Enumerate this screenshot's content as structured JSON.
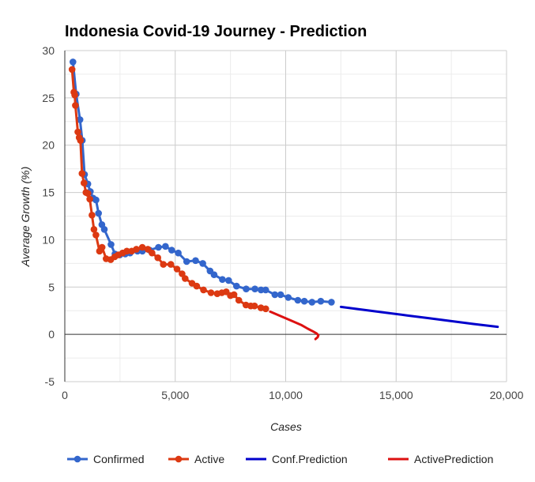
{
  "chart_data": {
    "type": "line",
    "title": "Indonesia Covid-19 Journey - Prediction",
    "xlabel": "Cases",
    "ylabel": "Average Growth (%)",
    "xlim": [
      0,
      20000
    ],
    "ylim": [
      -5,
      30
    ],
    "x_ticks": [
      0,
      5000,
      10000,
      15000,
      20000
    ],
    "x_tick_labels": [
      "0",
      "5,000",
      "10,000",
      "15,000",
      "20,000"
    ],
    "y_ticks": [
      -5,
      0,
      5,
      10,
      15,
      20,
      25,
      30
    ],
    "y_tick_labels": [
      "-5",
      "0",
      "5",
      "10",
      "15",
      "20",
      "25",
      "30"
    ],
    "grid": true,
    "legend_position": "bottom",
    "series": [
      {
        "name": "Confirmed",
        "color": "#3366cc",
        "markers": true,
        "points": [
          [
            369,
            28.8
          ],
          [
            514,
            25.4
          ],
          [
            686,
            22.7
          ],
          [
            790,
            20.5
          ],
          [
            893,
            16.9
          ],
          [
            1046,
            15.9
          ],
          [
            1155,
            15.1
          ],
          [
            1285,
            14.4
          ],
          [
            1414,
            14.2
          ],
          [
            1528,
            12.8
          ],
          [
            1677,
            11.6
          ],
          [
            1790,
            11.1
          ],
          [
            2092,
            9.5
          ],
          [
            2273,
            8.5
          ],
          [
            2491,
            8.4
          ],
          [
            2738,
            8.5
          ],
          [
            2956,
            8.6
          ],
          [
            3293,
            8.8
          ],
          [
            3512,
            8.8
          ],
          [
            3842,
            8.9
          ],
          [
            4241,
            9.2
          ],
          [
            4557,
            9.3
          ],
          [
            4839,
            8.9
          ],
          [
            5136,
            8.6
          ],
          [
            5516,
            7.7
          ],
          [
            5923,
            7.8
          ],
          [
            6248,
            7.5
          ],
          [
            6575,
            6.7
          ],
          [
            6760,
            6.3
          ],
          [
            7135,
            5.8
          ],
          [
            7418,
            5.7
          ],
          [
            7775,
            5.1
          ],
          [
            8211,
            4.8
          ],
          [
            8607,
            4.8
          ],
          [
            8882,
            4.7
          ],
          [
            9096,
            4.7
          ],
          [
            9511,
            4.2
          ],
          [
            9771,
            4.2
          ],
          [
            10118,
            3.9
          ],
          [
            10551,
            3.6
          ],
          [
            10843,
            3.5
          ],
          [
            11192,
            3.4
          ],
          [
            11587,
            3.5
          ],
          [
            12071,
            3.4
          ]
        ]
      },
      {
        "name": "Active",
        "color": "#dc3912",
        "markers": true,
        "points": [
          [
            329,
            28.0
          ],
          [
            410,
            25.6
          ],
          [
            450,
            25.3
          ],
          [
            480,
            24.2
          ],
          [
            590,
            21.4
          ],
          [
            650,
            20.8
          ],
          [
            710,
            20.5
          ],
          [
            780,
            17.0
          ],
          [
            870,
            16.0
          ],
          [
            960,
            15.0
          ],
          [
            1050,
            14.9
          ],
          [
            1130,
            14.3
          ],
          [
            1230,
            12.6
          ],
          [
            1320,
            11.1
          ],
          [
            1410,
            10.5
          ],
          [
            1570,
            8.8
          ],
          [
            1690,
            9.2
          ],
          [
            1870,
            8.0
          ],
          [
            2080,
            7.9
          ],
          [
            2260,
            8.2
          ],
          [
            2420,
            8.4
          ],
          [
            2620,
            8.6
          ],
          [
            2810,
            8.8
          ],
          [
            3030,
            8.8
          ],
          [
            3240,
            9.0
          ],
          [
            3510,
            9.2
          ],
          [
            3760,
            9.0
          ],
          [
            3950,
            8.6
          ],
          [
            4210,
            8.1
          ],
          [
            4460,
            7.4
          ],
          [
            4800,
            7.4
          ],
          [
            5080,
            6.9
          ],
          [
            5310,
            6.4
          ],
          [
            5450,
            5.9
          ],
          [
            5760,
            5.4
          ],
          [
            5970,
            5.1
          ],
          [
            6280,
            4.7
          ],
          [
            6620,
            4.4
          ],
          [
            6900,
            4.3
          ],
          [
            7110,
            4.4
          ],
          [
            7310,
            4.5
          ],
          [
            7500,
            4.1
          ],
          [
            7660,
            4.2
          ],
          [
            7880,
            3.6
          ],
          [
            8200,
            3.1
          ],
          [
            8420,
            3.0
          ],
          [
            8590,
            3.0
          ],
          [
            8880,
            2.8
          ],
          [
            9100,
            2.7
          ]
        ]
      },
      {
        "name": "Conf.Prediction",
        "color": "#0000cc",
        "markers": false,
        "points": [
          [
            12500,
            2.9
          ],
          [
            13500,
            2.6
          ],
          [
            14500,
            2.3
          ],
          [
            15500,
            2.0
          ],
          [
            16500,
            1.7
          ],
          [
            17500,
            1.4
          ],
          [
            18500,
            1.1
          ],
          [
            19600,
            0.8
          ]
        ]
      },
      {
        "name": "ActivePrediction",
        "color": "#dd1111",
        "markers": false,
        "points": [
          [
            9300,
            2.4
          ],
          [
            9800,
            1.9
          ],
          [
            10300,
            1.4
          ],
          [
            10700,
            1.0
          ],
          [
            11000,
            0.6
          ],
          [
            11250,
            0.3
          ],
          [
            11400,
            0.1
          ],
          [
            11480,
            -0.1
          ],
          [
            11450,
            -0.3
          ],
          [
            11350,
            -0.5
          ]
        ]
      }
    ]
  }
}
